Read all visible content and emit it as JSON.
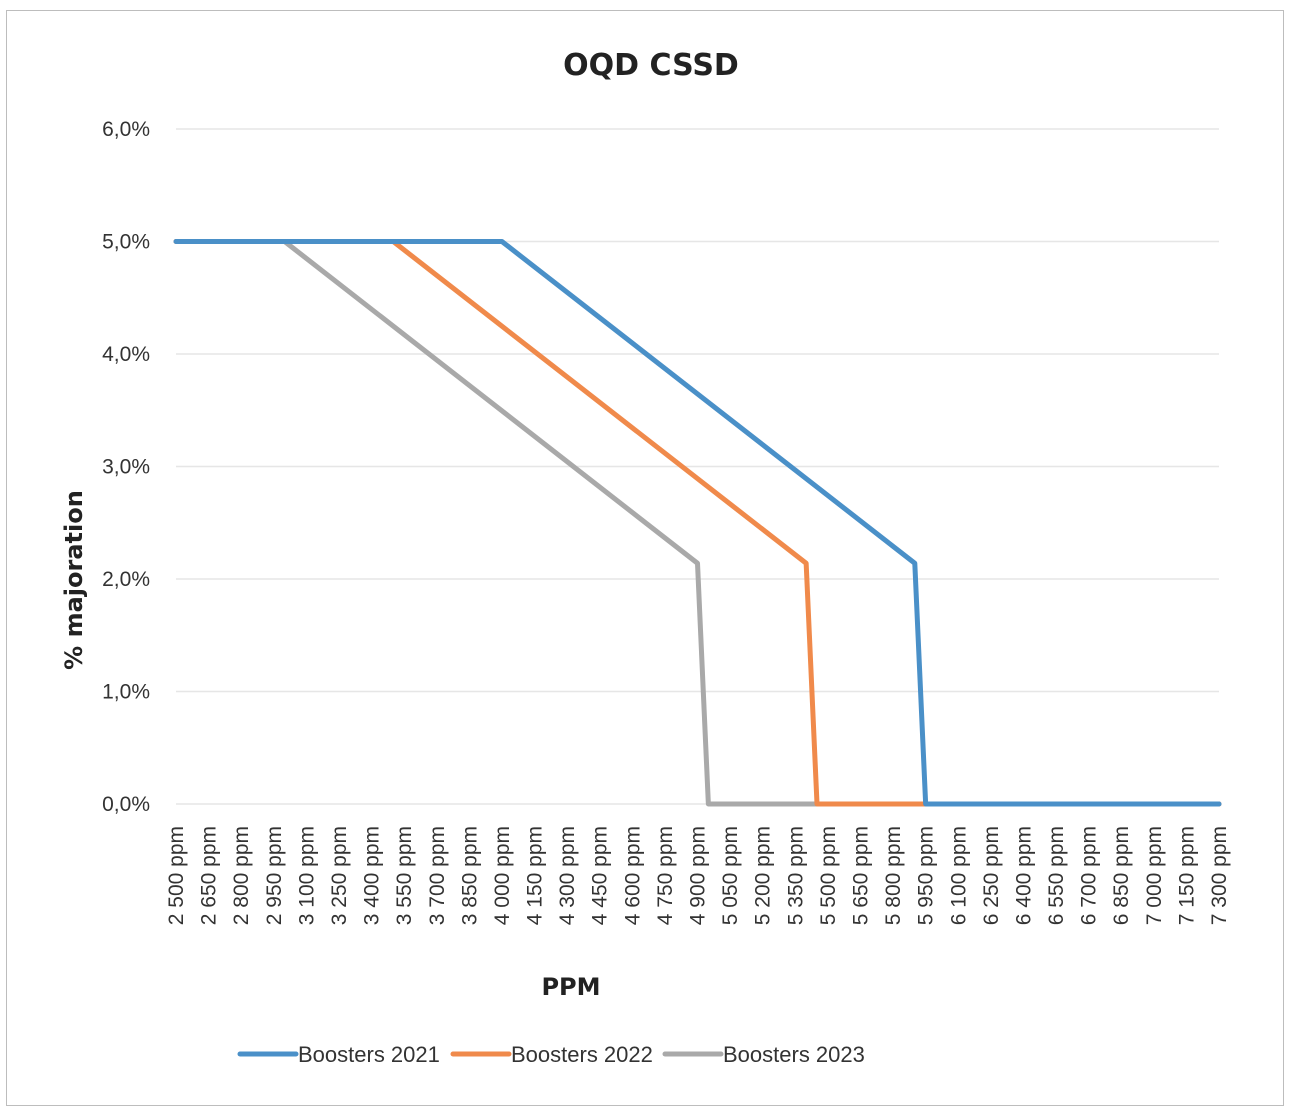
{
  "chart_data": {
    "type": "line",
    "title": "OQD CSSD",
    "xlabel": "PPM",
    "ylabel": "% majoration",
    "categories": [
      "2 500 ppm",
      "2 650 ppm",
      "2 800 ppm",
      "2 950 ppm",
      "3 100 ppm",
      "3 250 ppm",
      "3 400 ppm",
      "3 550 ppm",
      "3 700 ppm",
      "3 850 ppm",
      "4 000 ppm",
      "4 150 ppm",
      "4 300 ppm",
      "4 450 ppm",
      "4 600 ppm",
      "4 750 ppm",
      "4 900 ppm",
      "5 050 ppm",
      "5 200 ppm",
      "5 350 ppm",
      "5 500 ppm",
      "5 650 ppm",
      "5 800 ppm",
      "5 950 ppm",
      "6 100 ppm",
      "6 250 ppm",
      "6 400 ppm",
      "6 550 ppm",
      "6 700 ppm",
      "6 850 ppm",
      "7 000 ppm",
      "7 150 ppm",
      "7 300 ppm"
    ],
    "y_ticks": [
      "0,0%",
      "1,0%",
      "2,0%",
      "3,0%",
      "4,0%",
      "5,0%",
      "6,0%"
    ],
    "ylim": [
      0,
      0.06
    ],
    "grid": true,
    "legend_position": "bottom",
    "series": [
      {
        "name": "Boosters 2021",
        "color": "#4a90c8",
        "points": [
          [
            2500,
            0.05
          ],
          [
            4000,
            0.05
          ],
          [
            5900,
            0.0214
          ],
          [
            5950,
            0.0
          ],
          [
            7300,
            0.0
          ]
        ]
      },
      {
        "name": "Boosters 2022",
        "color": "#f08a4b",
        "points": [
          [
            2500,
            0.05
          ],
          [
            3500,
            0.05
          ],
          [
            5400,
            0.0214
          ],
          [
            5450,
            0.0
          ],
          [
            7300,
            0.0
          ]
        ]
      },
      {
        "name": "Boosters 2023",
        "color": "#a9a9a9",
        "points": [
          [
            2500,
            0.05
          ],
          [
            3000,
            0.05
          ],
          [
            4900,
            0.0214
          ],
          [
            4950,
            0.0
          ],
          [
            7300,
            0.0
          ]
        ]
      }
    ]
  }
}
